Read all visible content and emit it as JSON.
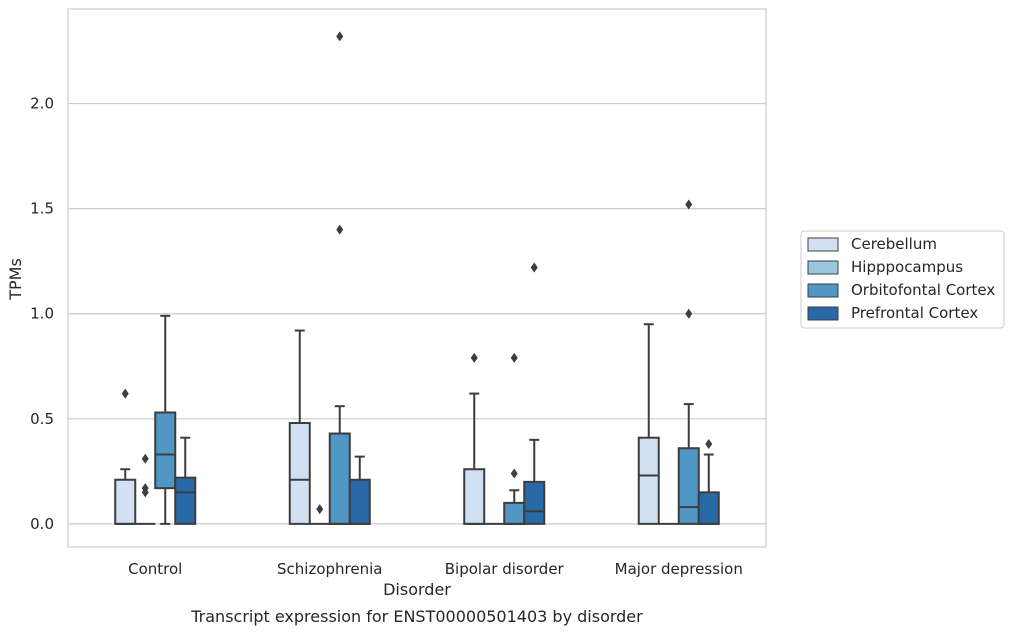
{
  "caption": "Transcript expression for ENST00000501403 by disorder",
  "chart_data": {
    "type": "box",
    "xlabel": "Disorder",
    "ylabel": "TPMs",
    "ylim": [
      -0.11,
      2.45
    ],
    "yticks": [
      0.0,
      0.5,
      1.0,
      1.5,
      2.0
    ],
    "ytick_labels": [
      "0.0",
      "0.5",
      "1.0",
      "1.5",
      "2.0"
    ],
    "grid": "horizontal",
    "legend_position": "right",
    "categories": [
      "Control",
      "Schizophrenia",
      "Bipolar disorder",
      "Major depression"
    ],
    "series": [
      {
        "name": "Cerebellum",
        "color": "#d1e1f1",
        "boxes": [
          {
            "whislo": 0.0,
            "q1": 0.0,
            "med": 0.0,
            "q3": 0.21,
            "whishi": 0.26,
            "fliers": [
              0.62
            ]
          },
          {
            "whislo": 0.0,
            "q1": 0.0,
            "med": 0.21,
            "q3": 0.48,
            "whishi": 0.92,
            "fliers": []
          },
          {
            "whislo": 0.0,
            "q1": 0.0,
            "med": 0.0,
            "q3": 0.26,
            "whishi": 0.62,
            "fliers": [
              0.79
            ]
          },
          {
            "whislo": 0.0,
            "q1": 0.0,
            "med": 0.23,
            "q3": 0.41,
            "whishi": 0.95,
            "fliers": []
          }
        ]
      },
      {
        "name": "Hipppocampus",
        "color": "#9ac7e0",
        "boxes": [
          {
            "whislo": 0.0,
            "q1": 0.0,
            "med": 0.0,
            "q3": 0.0,
            "whishi": 0.0,
            "fliers": [
              0.15,
              0.17,
              0.31
            ]
          },
          {
            "whislo": 0.0,
            "q1": 0.0,
            "med": 0.0,
            "q3": 0.0,
            "whishi": 0.0,
            "fliers": [
              0.07
            ]
          },
          {
            "whislo": 0.0,
            "q1": 0.0,
            "med": 0.0,
            "q3": 0.0,
            "whishi": 0.0,
            "fliers": []
          },
          {
            "whislo": 0.0,
            "q1": 0.0,
            "med": 0.0,
            "q3": 0.0,
            "whishi": 0.0,
            "fliers": []
          }
        ]
      },
      {
        "name": "Orbitofontal Cortex",
        "color": "#5197c6",
        "boxes": [
          {
            "whislo": 0.0,
            "q1": 0.17,
            "med": 0.33,
            "q3": 0.53,
            "whishi": 0.99,
            "fliers": []
          },
          {
            "whislo": 0.0,
            "q1": 0.0,
            "med": 0.0,
            "q3": 0.43,
            "whishi": 0.56,
            "fliers": [
              1.4,
              2.32
            ]
          },
          {
            "whislo": 0.0,
            "q1": 0.0,
            "med": 0.0,
            "q3": 0.1,
            "whishi": 0.16,
            "fliers": [
              0.24,
              0.79
            ]
          },
          {
            "whislo": 0.0,
            "q1": 0.0,
            "med": 0.08,
            "q3": 0.36,
            "whishi": 0.57,
            "fliers": [
              1.0,
              1.52
            ]
          }
        ]
      },
      {
        "name": "Prefrontal Cortex",
        "color": "#2a69a8",
        "boxes": [
          {
            "whislo": 0.0,
            "q1": 0.0,
            "med": 0.15,
            "q3": 0.22,
            "whishi": 0.41,
            "fliers": []
          },
          {
            "whislo": 0.0,
            "q1": 0.0,
            "med": 0.0,
            "q3": 0.21,
            "whishi": 0.32,
            "fliers": []
          },
          {
            "whislo": 0.0,
            "q1": 0.0,
            "med": 0.06,
            "q3": 0.2,
            "whishi": 0.4,
            "fliers": [
              1.22
            ]
          },
          {
            "whislo": 0.0,
            "q1": 0.0,
            "med": 0.0,
            "q3": 0.15,
            "whishi": 0.33,
            "fliers": [
              0.38
            ]
          }
        ]
      }
    ]
  }
}
